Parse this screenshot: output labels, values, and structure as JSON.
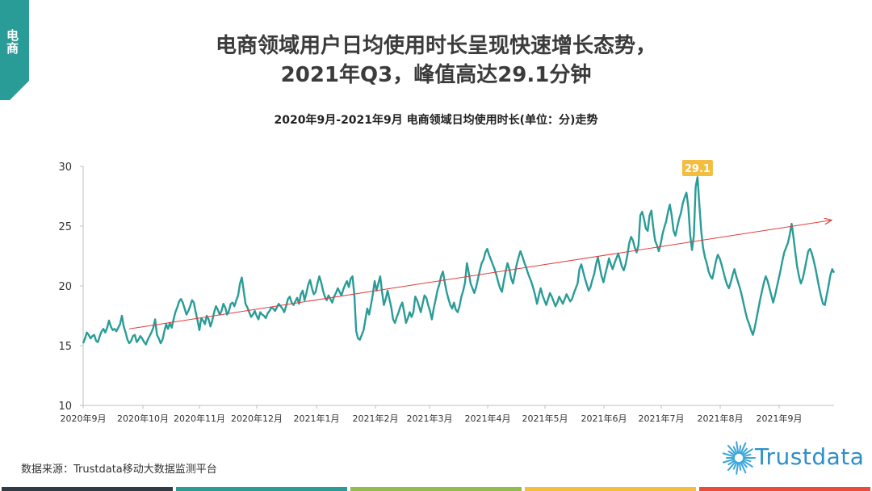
{
  "section_tag": "电商",
  "headline": {
    "line1": "电商领域用户日均使用时长呈现快速增长态势，",
    "line2": "2021年Q3，峰值高达29.1分钟"
  },
  "source_note": "数据来源：Trustdata移动大数据监测平台",
  "logo": {
    "text": "Trustdata",
    "icon": "starburst-icon"
  },
  "colors": {
    "accent": "#2a9c97",
    "series": "#2a9c97",
    "trend": "#e23b3b",
    "peak_label": "#f3bd3f",
    "bottom_bars": [
      "#2f3b45",
      "#2a9c97",
      "#8fbf4a",
      "#f3bd3f",
      "#e74c3c"
    ]
  },
  "chart_data": {
    "type": "line",
    "title": "2020年9月-2021年9月 电商领域日均使用时长(单位：分)走势",
    "ylim": [
      10,
      30
    ],
    "yticks": [
      10,
      15,
      20,
      25,
      30
    ],
    "xticks": [
      "2020年9月",
      "2020年10月",
      "2020年11月",
      "2020年12月",
      "2021年1月",
      "2021年2月",
      "2021年3月",
      "2021年4月",
      "2021年5月",
      "2021年6月",
      "2021年7月",
      "2021年8月",
      "2021年9月"
    ],
    "grid": false,
    "annotation": {
      "label": "29.1",
      "value": 29.1
    },
    "trendline": {
      "start": 16.4,
      "end": 25.5
    },
    "series": [
      {
        "values": [
          15.2,
          15.6,
          16.1,
          15.9,
          15.6,
          15.8,
          15.9,
          15.4,
          15.3,
          15.8,
          16.2,
          16.4,
          16.1,
          16.5,
          17.1,
          16.6,
          16.3,
          16.4,
          16.2,
          16.5,
          16.8,
          17.5,
          16.6,
          16.1,
          15.5,
          15.2,
          15.4,
          15.8,
          15.9,
          15.3,
          15.5,
          15.8,
          15.6,
          15.3,
          15.1,
          15.5,
          15.8,
          16.1,
          16.5,
          17.2,
          15.9,
          15.6,
          15.2,
          15.5,
          16.2,
          16.8,
          16.4,
          16.9,
          16.5,
          17.2,
          17.8,
          18.2,
          18.7,
          18.9,
          18.6,
          18.1,
          17.6,
          17.9,
          18.3,
          18.8,
          18.6,
          17.8,
          17.1,
          16.3,
          17.3,
          17.1,
          16.8,
          17.5,
          17.2,
          16.6,
          17.1,
          17.8,
          18.3,
          18.0,
          17.6,
          17.9,
          18.5,
          18.2,
          17.6,
          17.9,
          18.5,
          18.6,
          18.3,
          18.8,
          19.2,
          20.2,
          20.7,
          19.6,
          18.5,
          18.2,
          17.8,
          17.4,
          17.6,
          17.9,
          17.5,
          17.2,
          17.8,
          17.6,
          17.5,
          17.3,
          17.7,
          17.9,
          18.2,
          18.1,
          17.9,
          18.2,
          18.5,
          18.3,
          18.1,
          17.8,
          18.3,
          18.9,
          19.1,
          18.6,
          18.4,
          18.7,
          19.0,
          18.5,
          19.3,
          19.6,
          18.8,
          19.4,
          20.1,
          20.5,
          19.8,
          19.3,
          19.5,
          20.2,
          20.8,
          20.3,
          19.6,
          19.1,
          18.8,
          19.2,
          18.9,
          18.6,
          19.1,
          19.4,
          19.8,
          19.5,
          19.2,
          19.7,
          20.1,
          20.4,
          19.9,
          20.6,
          20.8,
          19.2,
          16.2,
          15.6,
          15.5,
          15.9,
          16.3,
          17.2,
          18.1,
          17.6,
          18.4,
          19.3,
          20.4,
          19.6,
          20.2,
          20.8,
          19.5,
          18.4,
          18.9,
          19.6,
          18.9,
          18.2,
          17.2,
          16.9,
          17.4,
          17.8,
          18.3,
          18.6,
          17.8,
          16.9,
          17.3,
          17.8,
          17.4,
          17.8,
          19.1,
          18.8,
          18.3,
          17.8,
          18.5,
          19.2,
          19.0,
          18.4,
          17.9,
          17.2,
          18.1,
          18.8,
          19.6,
          20.1,
          20.8,
          21.2,
          20.3,
          19.5,
          18.9,
          18.4,
          18.1,
          18.6,
          18.0,
          17.8,
          18.3,
          19.1,
          19.6,
          20.3,
          21.9,
          21.1,
          20.2,
          19.8,
          19.4,
          19.9,
          20.6,
          21.3,
          21.9,
          22.2,
          22.8,
          23.1,
          22.6,
          22.2,
          21.8,
          21.4,
          20.9,
          20.3,
          19.8,
          19.5,
          20.4,
          21.2,
          21.9,
          21.4,
          20.6,
          20.2,
          21.0,
          21.8,
          22.4,
          22.9,
          22.5,
          22.0,
          21.6,
          21.1,
          20.7,
          20.3,
          19.8,
          19.2,
          18.5,
          19.2,
          19.8,
          19.2,
          18.8,
          18.4,
          18.9,
          19.4,
          19.1,
          18.7,
          18.3,
          18.6,
          19.1,
          18.8,
          18.5,
          18.9,
          19.3,
          19.0,
          18.7,
          18.9,
          19.4,
          19.8,
          20.2,
          21.4,
          21.8,
          21.2,
          20.6,
          20.1,
          19.6,
          19.9,
          20.5,
          21.0,
          21.8,
          22.4,
          21.6,
          20.8,
          20.3,
          21.0,
          21.6,
          22.3,
          21.8,
          21.4,
          21.9,
          22.3,
          22.7,
          22.2,
          21.6,
          21.3,
          21.8,
          22.6,
          23.6,
          24.1,
          23.8,
          23.2,
          22.8,
          23.4,
          25.9,
          26.2,
          25.6,
          24.8,
          24.6,
          25.9,
          26.3,
          24.9,
          23.8,
          23.4,
          22.9,
          23.5,
          24.3,
          24.9,
          25.4,
          26.2,
          26.8,
          25.9,
          24.6,
          24.2,
          24.9,
          25.6,
          26.1,
          26.9,
          27.4,
          27.8,
          26.6,
          24.3,
          23.0,
          24.2,
          28.3,
          29.1,
          26.8,
          24.6,
          23.2,
          22.4,
          21.9,
          21.2,
          20.8,
          20.6,
          21.3,
          22.1,
          22.6,
          22.3,
          21.8,
          21.2,
          20.6,
          20.1,
          19.8,
          20.3,
          20.9,
          21.4,
          20.8,
          20.3,
          19.8,
          19.2,
          18.5,
          17.8,
          17.2,
          16.8,
          16.3,
          15.9,
          16.5,
          17.3,
          18.1,
          18.9,
          19.6,
          20.3,
          20.8,
          20.4,
          19.8,
          19.2,
          18.6,
          19.2,
          19.9,
          20.6,
          21.3,
          22.1,
          22.8,
          23.2,
          23.6,
          24.3,
          25.2,
          24.1,
          22.8,
          21.6,
          20.8,
          20.2,
          20.6,
          21.3,
          22.1,
          22.9,
          23.1,
          22.7,
          22.1,
          21.4,
          20.6,
          19.8,
          19.1,
          18.5,
          18.4,
          19.2,
          20.0,
          20.9,
          21.4,
          21.1
        ]
      }
    ]
  }
}
